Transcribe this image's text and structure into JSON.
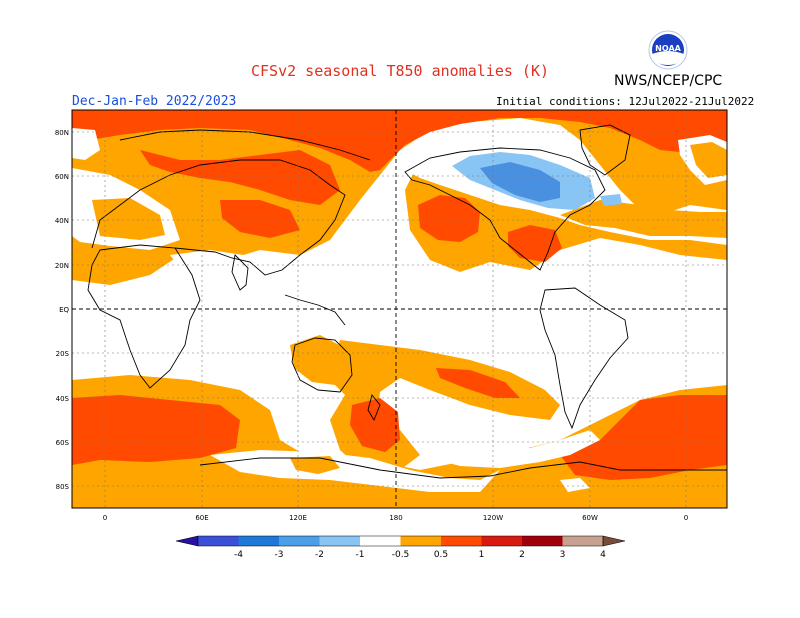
{
  "title": "CFSv2 seasonal T850 anomalies (K)",
  "agency": "NWS/NCEP/CPC",
  "logo_text": "NOAA",
  "period": "Dec-Jan-Feb 2022/2023",
  "initial_conditions": "Initial conditions: 12Jul2022-21Jul2022",
  "lat_labels": [
    "80N",
    "60N",
    "40N",
    "20N",
    "EQ",
    "20S",
    "40S",
    "60S",
    "80S"
  ],
  "lon_labels": [
    "0",
    "60E",
    "120E",
    "180",
    "120W",
    "60W",
    "0"
  ],
  "legend": {
    "ticks": [
      "-4",
      "-3",
      "-2",
      "-1",
      "-0.5",
      "0.5",
      "1",
      "2",
      "3",
      "4"
    ],
    "colors": [
      "#2a0fa0",
      "#3a50d8",
      "#1f78d8",
      "#4aa0e8",
      "#88c4f4",
      "#ffffff",
      "#ffa500",
      "#ff4a00",
      "#d81a10",
      "#a0000a",
      "#c8a090",
      "#7a4a3a"
    ]
  },
  "map_colors": {
    "weak_positive": "#ffa500",
    "positive": "#ff4a00",
    "strong_positive": "#e02010",
    "weak_negative": "#88c4f4",
    "negative": "#4a90e0"
  }
}
